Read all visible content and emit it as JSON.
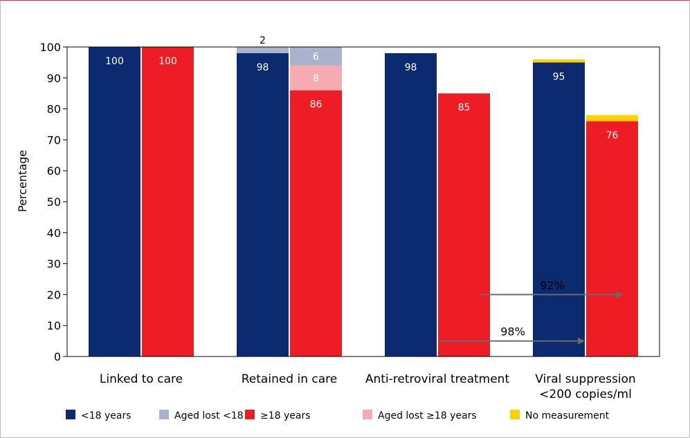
{
  "chart_data": {
    "type": "bar",
    "ylabel": "Percentage",
    "ylim": [
      0,
      100
    ],
    "yticks": [
      0,
      10,
      20,
      30,
      40,
      50,
      60,
      70,
      80,
      90,
      100
    ],
    "categories": [
      [
        "Linked to care"
      ],
      [
        "Retained in care"
      ],
      [
        "Anti-retroviral treatment"
      ],
      [
        "Viral suppression",
        "<200 copies/ml"
      ]
    ],
    "groups": [
      {
        "under18": {
          "value": 100,
          "lost": 0,
          "nomeas": 0,
          "label": "100",
          "lost_label": ""
        },
        "over18": {
          "value": 100,
          "lost": 0,
          "nomeas": 0,
          "label": "100",
          "lost_label": ""
        }
      },
      {
        "under18": {
          "value": 98,
          "lost": 2,
          "nomeas": 0,
          "label": "98",
          "lost_label": "2"
        },
        "over18": {
          "value": 86,
          "lost": 8,
          "lost2": 6,
          "nomeas": 0,
          "label": "86",
          "lost_label": "8",
          "lost2_label": "6"
        }
      },
      {
        "under18": {
          "value": 98,
          "lost": 0,
          "nomeas": 0,
          "label": "98",
          "lost_label": ""
        },
        "over18": {
          "value": 85,
          "lost": 0,
          "nomeas": 0,
          "label": "85",
          "lost_label": ""
        }
      },
      {
        "under18": {
          "value": 95,
          "lost": 0,
          "nomeas": 1,
          "label": "95",
          "lost_label": ""
        },
        "over18": {
          "value": 76,
          "lost": 0,
          "nomeas": 2,
          "label": "76",
          "lost_label": ""
        }
      }
    ],
    "annotations": [
      {
        "text": "92%",
        "y": 20
      },
      {
        "text": "98%",
        "y": 5
      }
    ],
    "legend": [
      {
        "label": "<18 years",
        "color": "#0b2a6f"
      },
      {
        "label": "Aged lost <18",
        "color": "#a9b4cc"
      },
      {
        "label": "≥18 years",
        "color": "#ee1c25"
      },
      {
        "label": "Aged lost ≥18 years",
        "color": "#f7abb0"
      },
      {
        "label": "No measurement",
        "color": "#ffd200"
      }
    ],
    "colors": {
      "under18": "#0b2a6f",
      "lost_under18": "#a9b4cc",
      "over18": "#ee1c25",
      "lost_over18": "#f7abb0",
      "nomeas": "#ffd200",
      "arrow": "#6b6b6b"
    }
  }
}
